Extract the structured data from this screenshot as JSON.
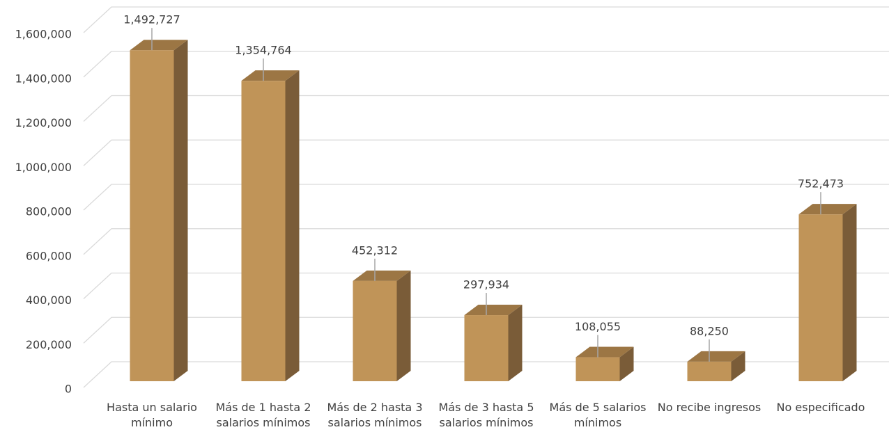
{
  "chart_data": {
    "type": "bar3d",
    "categories": [
      "Hasta un salario mínimo",
      "Más de 1 hasta 2 salarios mínimos",
      "Más de 2 hasta 3 salarios mínimos",
      "Más de 3 hasta 5 salarios mínimos",
      "Más de 5 salarios mínimos",
      "No recibe ingresos",
      "No especificado"
    ],
    "values": [
      1492727,
      1354764,
      452312,
      297934,
      108055,
      88250,
      752473
    ],
    "value_labels": [
      "1,492,727",
      "1,354,764",
      "452,312",
      "297,934",
      "108,055",
      "88,250",
      "752,473"
    ],
    "color": "#c09458",
    "ylim": [
      0,
      1600000
    ],
    "yticks": [
      0,
      {
        "value": 200000,
        "label": "200,000"
      },
      {
        "value": 400000,
        "label": "400,000"
      },
      {
        "value": 600000,
        "label": "600,000"
      },
      {
        "value": 800000,
        "label": "800,000"
      },
      {
        "value": 1000000,
        "label": "1,000,000"
      },
      {
        "value": 1200000,
        "label": "1,200,000"
      },
      {
        "value": 1400000,
        "label": "1,400,000"
      },
      {
        "value": 1600000,
        "label": "1,600,000"
      }
    ],
    "grid": true
  }
}
